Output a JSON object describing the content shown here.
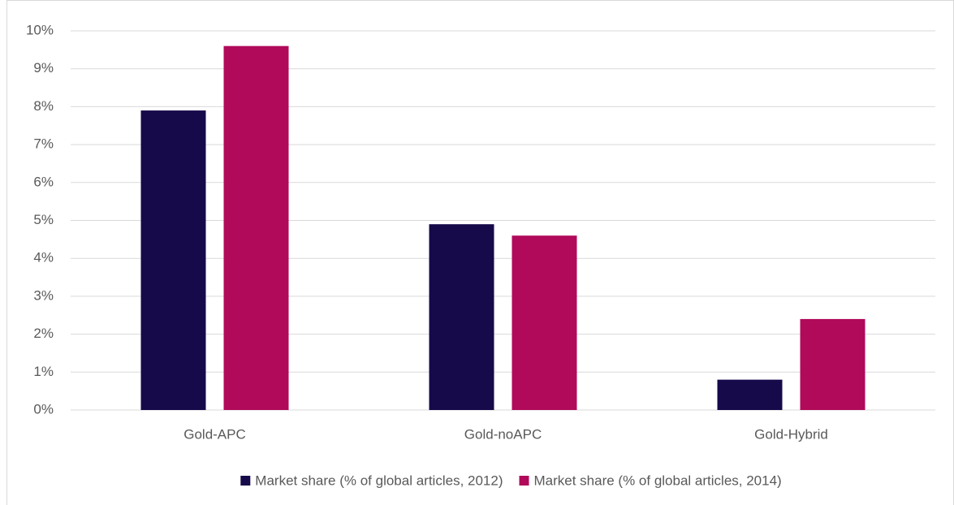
{
  "chart_data": {
    "type": "bar",
    "categories": [
      "Gold-APC",
      "Gold-noAPC",
      "Gold-Hybrid"
    ],
    "series": [
      {
        "name": "Market share (% of global articles, 2012)",
        "color": "#170a4a",
        "values": [
          7.9,
          4.9,
          0.8
        ]
      },
      {
        "name": "Market share (% of global articles, 2014)",
        "color": "#b10a5a",
        "values": [
          9.6,
          4.6,
          2.4
        ]
      }
    ],
    "ylim": [
      0,
      10
    ],
    "yticks": [
      {
        "value": 0,
        "label": "0%"
      },
      {
        "value": 1,
        "label": "1%"
      },
      {
        "value": 2,
        "label": "2%"
      },
      {
        "value": 3,
        "label": "3%"
      },
      {
        "value": 4,
        "label": "4%"
      },
      {
        "value": 5,
        "label": "5%"
      },
      {
        "value": 6,
        "label": "6%"
      },
      {
        "value": 7,
        "label": "7%"
      },
      {
        "value": 8,
        "label": "8%"
      },
      {
        "value": 9,
        "label": "9%"
      },
      {
        "value": 10,
        "label": "10%"
      }
    ],
    "grid": true,
    "legend": "bottom"
  }
}
